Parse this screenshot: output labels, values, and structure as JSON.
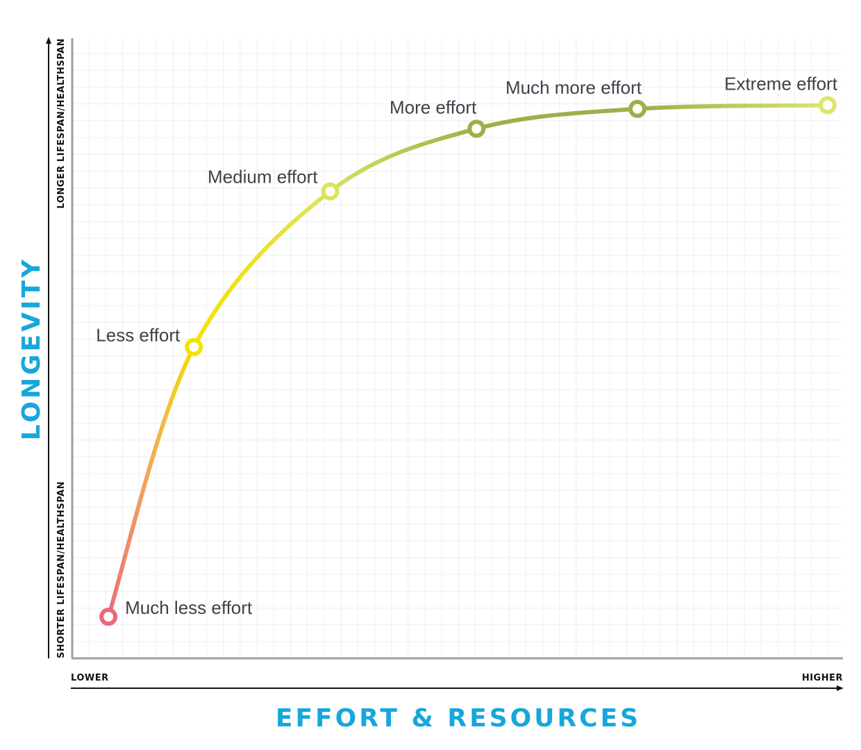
{
  "chart_data": {
    "type": "line",
    "title": "",
    "xlabel": "EFFORT & RESOURCES",
    "ylabel": "LONGEVITY",
    "x_tick_labels": {
      "low": "LOWER",
      "high": "HIGHER"
    },
    "y_tick_labels": {
      "low": "SHORTER LIFESPAN/HEALTHSPAN",
      "high": "LONGER LIFESPAN/HEALTHSPAN"
    },
    "xlim": [
      0,
      100
    ],
    "ylim": [
      0,
      100
    ],
    "grid": true,
    "points": [
      {
        "label": "Much less effort",
        "x": 4.7,
        "y": 6.7,
        "color": "#e8687a"
      },
      {
        "label": "Less effort",
        "x": 15.8,
        "y": 50.2,
        "color": "#f5e200"
      },
      {
        "label": "Medium effort",
        "x": 33.5,
        "y": 75.3,
        "color": "#d9e45e"
      },
      {
        "label": "More effort",
        "x": 52.5,
        "y": 85.4,
        "color": "#9fae48"
      },
      {
        "label": "Much more effort",
        "x": 73.4,
        "y": 88.6,
        "color": "#9fae48"
      },
      {
        "label": "Extreme effort",
        "x": 98.1,
        "y": 89.2,
        "color": "#dde56c"
      }
    ],
    "colors": {
      "title": "#16a7db",
      "grid": "#eceef0",
      "axis": "#9aa0a6",
      "label": "#3d4249"
    }
  }
}
